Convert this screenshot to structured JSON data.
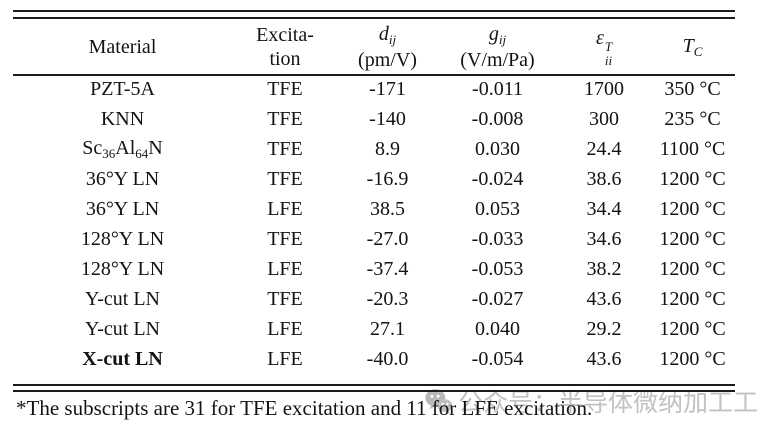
{
  "page": {
    "background": "#ffffff",
    "text_color": "#131313",
    "rule_color": "#1b1b1b"
  },
  "table": {
    "header": {
      "material": "Material",
      "excitation_line1": "Excita-",
      "excitation_line2": "tion",
      "d_symbol": "d",
      "d_subscript": "ij",
      "d_unit": "(pm/V)",
      "g_symbol": "g",
      "g_subscript": "ij",
      "g_unit": "(V/m/Pa)",
      "epsilon_symbol": "ε",
      "epsilon_superscript": "T",
      "epsilon_subscript": "ii",
      "tc_symbol": "T",
      "tc_subscript": "C"
    },
    "rows": [
      {
        "material": [
          {
            "t": "PZT-5A"
          }
        ],
        "excitation": "TFE",
        "d": "-171",
        "g": "-0.011",
        "epsilon": "1700",
        "tc": "350 °C",
        "bold": false
      },
      {
        "material": [
          {
            "t": "KNN"
          }
        ],
        "excitation": "TFE",
        "d": "-140",
        "g": "-0.008",
        "epsilon": "300",
        "tc": "235 °C",
        "bold": false
      },
      {
        "material": [
          {
            "t": "Sc"
          },
          {
            "sub": "36"
          },
          {
            "t": "Al"
          },
          {
            "sub": "64"
          },
          {
            "t": "N"
          }
        ],
        "excitation": "TFE",
        "d": "8.9",
        "g": "0.030",
        "epsilon": "24.4",
        "tc": "1100 °C",
        "bold": false
      },
      {
        "material": [
          {
            "t": "36°Y LN"
          }
        ],
        "excitation": "TFE",
        "d": "-16.9",
        "g": "-0.024",
        "epsilon": "38.6",
        "tc": "1200 °C",
        "bold": false
      },
      {
        "material": [
          {
            "t": "36°Y LN"
          }
        ],
        "excitation": "LFE",
        "d": "38.5",
        "g": "0.053",
        "epsilon": "34.4",
        "tc": "1200 °C",
        "bold": false
      },
      {
        "material": [
          {
            "t": "128°Y LN"
          }
        ],
        "excitation": "TFE",
        "d": "-27.0",
        "g": "-0.033",
        "epsilon": "34.6",
        "tc": "1200 °C",
        "bold": false
      },
      {
        "material": [
          {
            "t": "128°Y LN"
          }
        ],
        "excitation": "LFE",
        "d": "-37.4",
        "g": "-0.053",
        "epsilon": "38.2",
        "tc": "1200 °C",
        "bold": false
      },
      {
        "material": [
          {
            "t": "Y-cut LN"
          }
        ],
        "excitation": "TFE",
        "d": "-20.3",
        "g": "-0.027",
        "epsilon": "43.6",
        "tc": "1200 °C",
        "bold": false
      },
      {
        "material": [
          {
            "t": "Y-cut LN"
          }
        ],
        "excitation": "LFE",
        "d": "27.1",
        "g": "0.040",
        "epsilon": "29.2",
        "tc": "1200 °C",
        "bold": false
      },
      {
        "material": [
          {
            "t": "X-cut LN"
          }
        ],
        "excitation": "LFE",
        "d": "-40.0",
        "g": "-0.054",
        "epsilon": "43.6",
        "tc": "1200 °C",
        "bold": true
      }
    ]
  },
  "footnote": "*The subscripts are 31 for TFE excitation and 11 for LFE excitation.",
  "watermark": {
    "icon": "wechat-icon",
    "text": "公众号：半导体微纳加工工厂",
    "color": "#ababab"
  }
}
